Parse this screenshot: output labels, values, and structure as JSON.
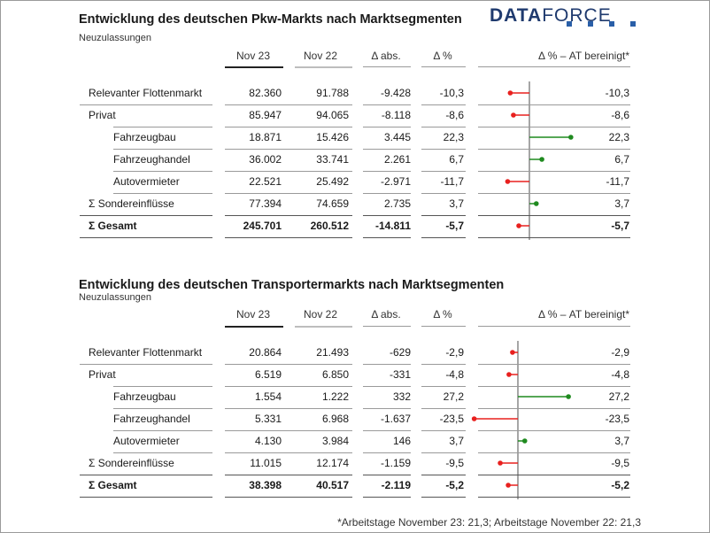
{
  "logo": {
    "part1": "DATA",
    "part2": "FORCE"
  },
  "colors": {
    "negative": "#e8201e",
    "positive": "#1f8a1f",
    "axis": "#888888",
    "logo": "#1f3a6e"
  },
  "headers": {
    "nov23": "Nov 23",
    "nov22": "Nov 22",
    "abs": "Δ abs.",
    "pct": "Δ %",
    "adj": "Δ % – AT bereinigt*"
  },
  "footnote": "*Arbeitstage November 23: 21,3; Arbeitstage November 22: 21,3",
  "chart_data": [
    {
      "type": "table",
      "title": "Entwicklung des deutschen Pkw-Markts nach Marktsegmenten",
      "subtitle": "Neuzulassungen",
      "rows": [
        {
          "label": "Relevanter Flottenmarkt",
          "indent": false,
          "bold": false,
          "nov23": "82.360",
          "nov22": "91.788",
          "abs": "-9.428",
          "pct": "-10,3",
          "adj": "-10,3",
          "adj_value": -10.3
        },
        {
          "label": "Privat",
          "indent": false,
          "bold": false,
          "nov23": "85.947",
          "nov22": "94.065",
          "abs": "-8.118",
          "pct": "-8,6",
          "adj": "-8,6",
          "adj_value": -8.6
        },
        {
          "label": "Fahrzeugbau",
          "indent": true,
          "bold": false,
          "nov23": "18.871",
          "nov22": "15.426",
          "abs": "3.445",
          "pct": "22,3",
          "adj": "22,3",
          "adj_value": 22.3
        },
        {
          "label": "Fahrzeughandel",
          "indent": true,
          "bold": false,
          "nov23": "36.002",
          "nov22": "33.741",
          "abs": "2.261",
          "pct": "6,7",
          "adj": "6,7",
          "adj_value": 6.7
        },
        {
          "label": "Autovermieter",
          "indent": true,
          "bold": false,
          "nov23": "22.521",
          "nov22": "25.492",
          "abs": "-2.971",
          "pct": "-11,7",
          "adj": "-11,7",
          "adj_value": -11.7
        },
        {
          "label": "Σ Sondereinflüsse",
          "indent": false,
          "bold": false,
          "nov23": "77.394",
          "nov22": "74.659",
          "abs": "2.735",
          "pct": "3,7",
          "adj": "3,7",
          "adj_value": 3.7
        },
        {
          "label": "Σ Gesamt",
          "indent": false,
          "bold": true,
          "nov23": "245.701",
          "nov22": "260.512",
          "abs": "-14.811",
          "pct": "-5,7",
          "adj": "-5,7",
          "adj_value": -5.7
        }
      ]
    },
    {
      "type": "table",
      "title": "Entwicklung des deutschen Transportermarkts nach Marktsegmenten",
      "subtitle": "Neuzulassungen",
      "rows": [
        {
          "label": "Relevanter Flottenmarkt",
          "indent": false,
          "bold": false,
          "nov23": "20.864",
          "nov22": "21.493",
          "abs": "-629",
          "pct": "-2,9",
          "adj": "-2,9",
          "adj_value": -2.9
        },
        {
          "label": "Privat",
          "indent": false,
          "bold": false,
          "nov23": "6.519",
          "nov22": "6.850",
          "abs": "-331",
          "pct": "-4,8",
          "adj": "-4,8",
          "adj_value": -4.8
        },
        {
          "label": "Fahrzeugbau",
          "indent": true,
          "bold": false,
          "nov23": "1.554",
          "nov22": "1.222",
          "abs": "332",
          "pct": "27,2",
          "adj": "27,2",
          "adj_value": 27.2
        },
        {
          "label": "Fahrzeughandel",
          "indent": true,
          "bold": false,
          "nov23": "5.331",
          "nov22": "6.968",
          "abs": "-1.637",
          "pct": "-23,5",
          "adj": "-23,5",
          "adj_value": -23.5
        },
        {
          "label": "Autovermieter",
          "indent": true,
          "bold": false,
          "nov23": "4.130",
          "nov22": "3.984",
          "abs": "146",
          "pct": "3,7",
          "adj": "3,7",
          "adj_value": 3.7
        },
        {
          "label": "Σ Sondereinflüsse",
          "indent": false,
          "bold": false,
          "nov23": "11.015",
          "nov22": "12.174",
          "abs": "-1.159",
          "pct": "-9,5",
          "adj": "-9,5",
          "adj_value": -9.5
        },
        {
          "label": "Σ Gesamt",
          "indent": false,
          "bold": true,
          "nov23": "38.398",
          "nov22": "40.517",
          "abs": "-2.119",
          "pct": "-5,2",
          "adj": "-5,2",
          "adj_value": -5.2
        }
      ]
    }
  ]
}
